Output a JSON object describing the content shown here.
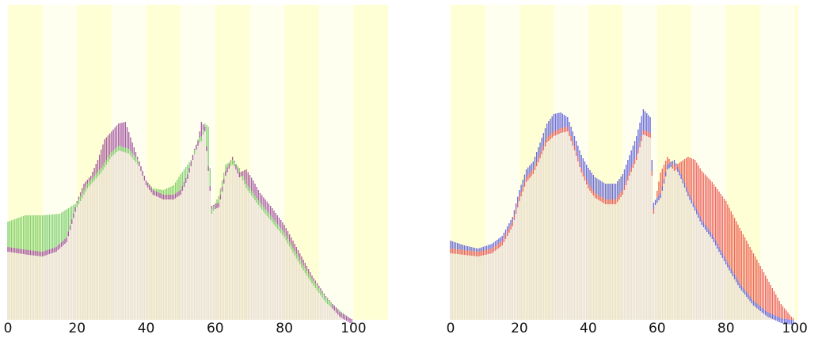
{
  "chart_data": [
    {
      "type": "area",
      "xlim": [
        0,
        110
      ],
      "ylim": [
        0,
        130
      ],
      "xticks": [
        "0",
        "20",
        "40",
        "60",
        "80",
        "100"
      ],
      "xtick_values": [
        0,
        20,
        40,
        60,
        80,
        100
      ],
      "grid": false,
      "colors": {
        "series_a": "#5ec44d",
        "series_b": "#8e2d90",
        "band_a": "#ffffd6",
        "band_b": "#ffffef"
      },
      "series": [
        {
          "key": "a",
          "values": [
            [
              0,
              62
            ],
            [
              5,
              66
            ],
            [
              10,
              66
            ],
            [
              15,
              67
            ],
            [
              20,
              74
            ],
            [
              23,
              86
            ],
            [
              27,
              96
            ],
            [
              30,
              106
            ],
            [
              32,
              110
            ],
            [
              35,
              108
            ],
            [
              38,
              100
            ],
            [
              40,
              88
            ],
            [
              42,
              83
            ],
            [
              45,
              82
            ],
            [
              48,
              85
            ],
            [
              50,
              92
            ],
            [
              53,
              101
            ],
            [
              55,
              114
            ],
            [
              56,
              116
            ],
            [
              57,
              124
            ],
            [
              58,
              122
            ],
            [
              59,
              70
            ],
            [
              61,
              78
            ],
            [
              63,
              98
            ],
            [
              65,
              101
            ],
            [
              67,
              96
            ],
            [
              69,
              86
            ],
            [
              71,
              80
            ],
            [
              73,
              74
            ],
            [
              76,
              66
            ],
            [
              80,
              55
            ],
            [
              85,
              36
            ],
            [
              88,
              26
            ],
            [
              92,
              14
            ],
            [
              96,
              6
            ],
            [
              99,
              1
            ],
            [
              100,
              0
            ]
          ]
        },
        {
          "key": "b",
          "values": [
            [
              0,
              46
            ],
            [
              3,
              45
            ],
            [
              6,
              44
            ],
            [
              10,
              43
            ],
            [
              14,
              46
            ],
            [
              17,
              52
            ],
            [
              20,
              75
            ],
            [
              22,
              86
            ],
            [
              24,
              91
            ],
            [
              26,
              101
            ],
            [
              28,
              114
            ],
            [
              30,
              119
            ],
            [
              32,
              124
            ],
            [
              34,
              125
            ],
            [
              36,
              112
            ],
            [
              38,
              100
            ],
            [
              40,
              88
            ],
            [
              42,
              82
            ],
            [
              45,
              79
            ],
            [
              48,
              79
            ],
            [
              50,
              82
            ],
            [
              52,
              92
            ],
            [
              54,
              108
            ],
            [
              55,
              113
            ],
            [
              56,
              125
            ],
            [
              57,
              122
            ],
            [
              59,
              72
            ],
            [
              61,
              74
            ],
            [
              63,
              94
            ],
            [
              65,
              103
            ],
            [
              67,
              93
            ],
            [
              69,
              95
            ],
            [
              71,
              88
            ],
            [
              73,
              80
            ],
            [
              76,
              72
            ],
            [
              80,
              60
            ],
            [
              84,
              44
            ],
            [
              88,
              28
            ],
            [
              92,
              15
            ],
            [
              96,
              5
            ],
            [
              99,
              1
            ],
            [
              100,
              0
            ]
          ]
        }
      ]
    },
    {
      "type": "area",
      "xlim": [
        0,
        101
      ],
      "ylim": [
        0,
        130
      ],
      "xticks": [
        "0",
        "20",
        "40",
        "60",
        "80",
        "100"
      ],
      "xtick_values": [
        0,
        20,
        40,
        60,
        80,
        100
      ],
      "grid": false,
      "colors": {
        "series_a": "#3c3fd8",
        "series_b": "#e83a36",
        "band_a": "#ffffd6",
        "band_b": "#ffffef"
      },
      "series": [
        {
          "key": "a",
          "values": [
            [
              0,
              50
            ],
            [
              4,
              47
            ],
            [
              8,
              45
            ],
            [
              12,
              48
            ],
            [
              15,
              53
            ],
            [
              18,
              65
            ],
            [
              20,
              82
            ],
            [
              22,
              95
            ],
            [
              24,
              100
            ],
            [
              26,
              112
            ],
            [
              28,
              124
            ],
            [
              30,
              130
            ],
            [
              32,
              131
            ],
            [
              34,
              128
            ],
            [
              36,
              116
            ],
            [
              38,
              104
            ],
            [
              40,
              96
            ],
            [
              42,
              90
            ],
            [
              45,
              86
            ],
            [
              48,
              86
            ],
            [
              50,
              92
            ],
            [
              52,
              104
            ],
            [
              54,
              116
            ],
            [
              56,
              133
            ],
            [
              58,
              128
            ],
            [
              59,
              74
            ],
            [
              61,
              80
            ],
            [
              63,
              98
            ],
            [
              65,
              101
            ],
            [
              67,
              92
            ],
            [
              69,
              81
            ],
            [
              71,
              72
            ],
            [
              73,
              63
            ],
            [
              76,
              54
            ],
            [
              80,
              38
            ],
            [
              84,
              23
            ],
            [
              88,
              12
            ],
            [
              92,
              5
            ],
            [
              96,
              1
            ],
            [
              99,
              0
            ],
            [
              100,
              0
            ]
          ]
        },
        {
          "key": "b",
          "values": [
            [
              0,
              45
            ],
            [
              4,
              44
            ],
            [
              8,
              43
            ],
            [
              12,
              45
            ],
            [
              15,
              50
            ],
            [
              18,
              62
            ],
            [
              20,
              78
            ],
            [
              22,
              90
            ],
            [
              24,
              95
            ],
            [
              26,
              105
            ],
            [
              28,
              115
            ],
            [
              30,
              119
            ],
            [
              32,
              121
            ],
            [
              34,
              122
            ],
            [
              36,
              110
            ],
            [
              38,
              96
            ],
            [
              40,
              86
            ],
            [
              42,
              80
            ],
            [
              45,
              76
            ],
            [
              48,
              76
            ],
            [
              50,
              82
            ],
            [
              52,
              94
            ],
            [
              54,
              104
            ],
            [
              56,
              120
            ],
            [
              58,
              118
            ],
            [
              59,
              70
            ],
            [
              61,
              93
            ],
            [
              63,
              103
            ],
            [
              65,
              97
            ],
            [
              67,
              100
            ],
            [
              69,
              103
            ],
            [
              71,
              101
            ],
            [
              73,
              94
            ],
            [
              76,
              87
            ],
            [
              80,
              75
            ],
            [
              84,
              58
            ],
            [
              88,
              42
            ],
            [
              92,
              26
            ],
            [
              96,
              10
            ],
            [
              99,
              2
            ],
            [
              100,
              0
            ]
          ]
        }
      ]
    }
  ]
}
